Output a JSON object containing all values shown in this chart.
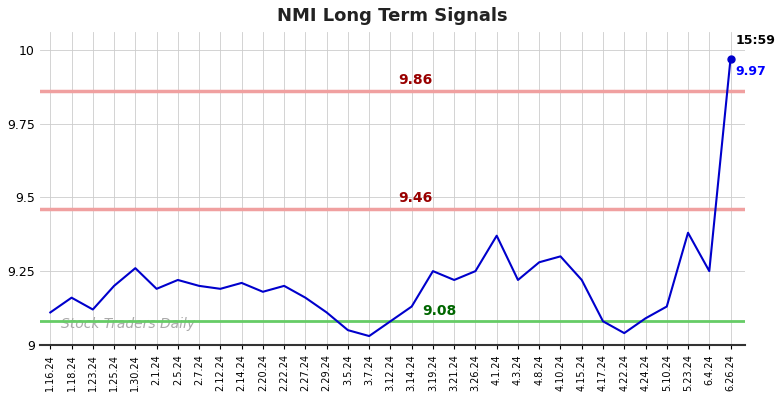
{
  "title": "NMI Long Term Signals",
  "watermark": "Stock Traders Daily",
  "hline1_value": 9.86,
  "hline1_label": "9.86",
  "hline2_value": 9.46,
  "hline2_label": "9.46",
  "hline3_value": 9.08,
  "hline3_label": "9.08",
  "last_label": "15:59",
  "last_value_label": "9.97",
  "last_value": 9.97,
  "ylim": [
    9.0,
    10.06
  ],
  "yticks": [
    9.0,
    9.25,
    9.5,
    9.75,
    10.0
  ],
  "ytick_labels": [
    "9",
    "9.25",
    "9.5",
    "9.75",
    "10"
  ],
  "line_color": "#0000cc",
  "hline_red_color": "#f0a0a0",
  "hline_green_color": "#66cc66",
  "x_labels": [
    "1.16.24",
    "1.18.24",
    "1.23.24",
    "1.25.24",
    "1.30.24",
    "2.1.24",
    "2.5.24",
    "2.7.24",
    "2.12.24",
    "2.14.24",
    "2.20.24",
    "2.22.24",
    "2.27.24",
    "2.29.24",
    "3.5.24",
    "3.7.24",
    "3.12.24",
    "3.14.24",
    "3.19.24",
    "3.21.24",
    "3.26.24",
    "4.1.24",
    "4.3.24",
    "4.8.24",
    "4.10.24",
    "4.15.24",
    "4.17.24",
    "4.22.24",
    "4.24.24",
    "5.10.24",
    "5.23.24",
    "6.4.24",
    "6.26.24"
  ],
  "y_values": [
    9.11,
    9.16,
    9.12,
    9.2,
    9.26,
    9.19,
    9.22,
    9.2,
    9.19,
    9.21,
    9.18,
    9.2,
    9.16,
    9.11,
    9.05,
    9.03,
    9.08,
    9.13,
    9.25,
    9.22,
    9.25,
    9.37,
    9.22,
    9.28,
    9.3,
    9.22,
    9.08,
    9.04,
    9.09,
    9.13,
    9.38,
    9.25,
    9.97
  ]
}
